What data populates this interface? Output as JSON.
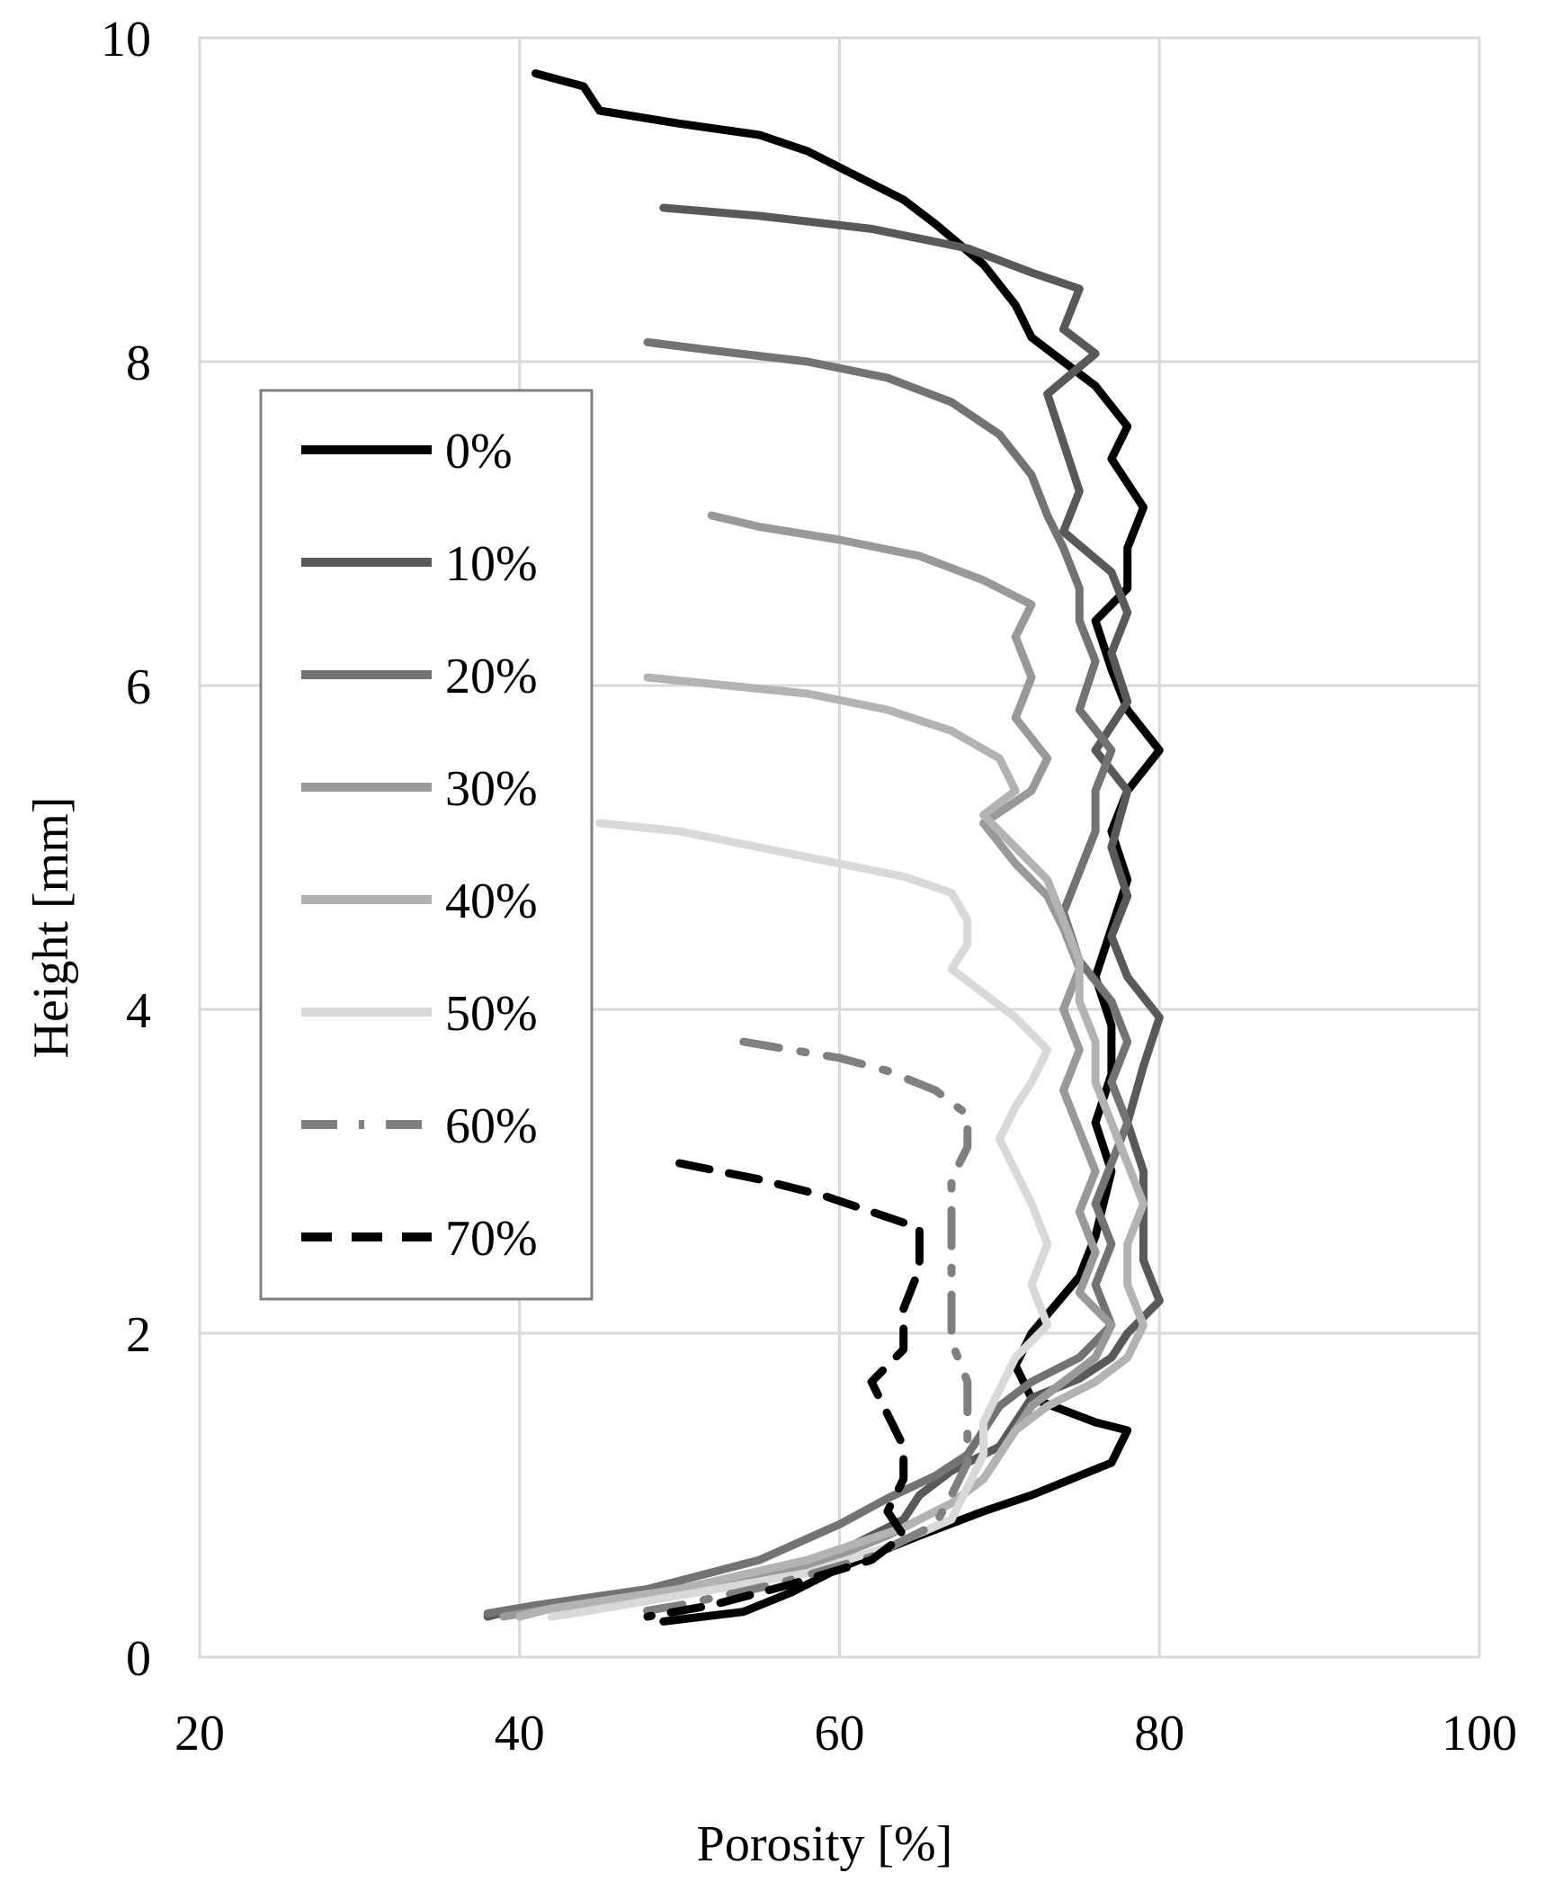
{
  "chart_data": {
    "type": "line",
    "xlabel": "Porosity  [%]",
    "ylabel": "Height  [mm]",
    "xlim": [
      20,
      100
    ],
    "ylim": [
      0,
      10
    ],
    "xticks": [
      "20",
      "40",
      "60",
      "80",
      "100"
    ],
    "yticks": [
      "0",
      "2",
      "4",
      "6",
      "8",
      "10"
    ],
    "grid": true,
    "legend": "upper-left",
    "series": [
      {
        "name": "0%",
        "color": "#000000",
        "dash": "solid",
        "points": [
          [
            41,
            9.78
          ],
          [
            44,
            9.7
          ],
          [
            45,
            9.55
          ],
          [
            50,
            9.47
          ],
          [
            55,
            9.4
          ],
          [
            58,
            9.3
          ],
          [
            61,
            9.15
          ],
          [
            64,
            9.0
          ],
          [
            66,
            8.85
          ],
          [
            69,
            8.6
          ],
          [
            71,
            8.35
          ],
          [
            72,
            8.15
          ],
          [
            74,
            8.0
          ],
          [
            76,
            7.85
          ],
          [
            78,
            7.6
          ],
          [
            77,
            7.4
          ],
          [
            79,
            7.1
          ],
          [
            78,
            6.85
          ],
          [
            78,
            6.6
          ],
          [
            76,
            6.4
          ],
          [
            77,
            6.1
          ],
          [
            78,
            5.85
          ],
          [
            80,
            5.6
          ],
          [
            78,
            5.35
          ],
          [
            77,
            5.1
          ],
          [
            78,
            4.8
          ],
          [
            77,
            4.5
          ],
          [
            76,
            4.2
          ],
          [
            77,
            3.9
          ],
          [
            77,
            3.6
          ],
          [
            76,
            3.3
          ],
          [
            77,
            3.0
          ],
          [
            76,
            2.6
          ],
          [
            75,
            2.35
          ],
          [
            72,
            2.0
          ],
          [
            71,
            1.8
          ],
          [
            72,
            1.6
          ],
          [
            76,
            1.45
          ],
          [
            78,
            1.4
          ],
          [
            77,
            1.2
          ],
          [
            72,
            1.0
          ],
          [
            69,
            0.9
          ],
          [
            65,
            0.75
          ],
          [
            60,
            0.55
          ],
          [
            57,
            0.4
          ],
          [
            54,
            0.28
          ],
          [
            49,
            0.22
          ]
        ]
      },
      {
        "name": "10%",
        "color": "#595959",
        "dash": "solid",
        "points": [
          [
            49,
            8.95
          ],
          [
            55,
            8.9
          ],
          [
            62,
            8.82
          ],
          [
            68,
            8.7
          ],
          [
            72,
            8.55
          ],
          [
            75,
            8.45
          ],
          [
            74,
            8.2
          ],
          [
            76,
            8.05
          ],
          [
            73,
            7.8
          ],
          [
            74,
            7.5
          ],
          [
            75,
            7.2
          ],
          [
            74,
            6.95
          ],
          [
            77,
            6.7
          ],
          [
            78,
            6.45
          ],
          [
            77,
            6.2
          ],
          [
            78,
            5.9
          ],
          [
            76,
            5.6
          ],
          [
            78,
            5.35
          ],
          [
            77,
            5.0
          ],
          [
            78,
            4.7
          ],
          [
            77,
            4.45
          ],
          [
            78,
            4.2
          ],
          [
            80,
            3.95
          ],
          [
            79,
            3.65
          ],
          [
            78,
            3.3
          ],
          [
            79,
            3.0
          ],
          [
            79,
            2.7
          ],
          [
            79,
            2.45
          ],
          [
            80,
            2.2
          ],
          [
            78,
            2.0
          ],
          [
            77,
            1.85
          ],
          [
            75,
            1.72
          ],
          [
            72,
            1.6
          ],
          [
            71,
            1.45
          ],
          [
            70,
            1.3
          ],
          [
            67,
            1.15
          ],
          [
            65,
            1.0
          ],
          [
            64,
            0.85
          ],
          [
            60,
            0.65
          ],
          [
            55,
            0.48
          ],
          [
            48,
            0.38
          ],
          [
            40,
            0.3
          ],
          [
            38,
            0.25
          ]
        ]
      },
      {
        "name": "20%",
        "color": "#737373",
        "dash": "solid",
        "points": [
          [
            48,
            8.12
          ],
          [
            52,
            8.07
          ],
          [
            58,
            8.0
          ],
          [
            63,
            7.9
          ],
          [
            67,
            7.75
          ],
          [
            70,
            7.55
          ],
          [
            72,
            7.3
          ],
          [
            73,
            7.05
          ],
          [
            74,
            6.85
          ],
          [
            75,
            6.6
          ],
          [
            75,
            6.4
          ],
          [
            76,
            6.15
          ],
          [
            75,
            5.85
          ],
          [
            77,
            5.6
          ],
          [
            76,
            5.35
          ],
          [
            76,
            5.1
          ],
          [
            75,
            4.85
          ],
          [
            74,
            4.6
          ],
          [
            75,
            4.3
          ],
          [
            77,
            4.05
          ],
          [
            78,
            3.8
          ],
          [
            77,
            3.55
          ],
          [
            78,
            3.3
          ],
          [
            77,
            3.05
          ],
          [
            76,
            2.8
          ],
          [
            77,
            2.55
          ],
          [
            76,
            2.3
          ],
          [
            77,
            2.05
          ],
          [
            75,
            1.85
          ],
          [
            72,
            1.7
          ],
          [
            70,
            1.55
          ],
          [
            69,
            1.4
          ],
          [
            68,
            1.25
          ],
          [
            66,
            1.12
          ],
          [
            63,
            0.98
          ],
          [
            60,
            0.82
          ],
          [
            55,
            0.6
          ],
          [
            48,
            0.42
          ],
          [
            41,
            0.32
          ],
          [
            38,
            0.27
          ]
        ]
      },
      {
        "name": "30%",
        "color": "#999999",
        "dash": "solid",
        "points": [
          [
            52,
            7.05
          ],
          [
            55,
            6.98
          ],
          [
            60,
            6.9
          ],
          [
            65,
            6.8
          ],
          [
            69,
            6.65
          ],
          [
            72,
            6.5
          ],
          [
            71,
            6.3
          ],
          [
            72,
            6.05
          ],
          [
            71,
            5.8
          ],
          [
            73,
            5.55
          ],
          [
            72,
            5.35
          ],
          [
            69,
            5.15
          ],
          [
            71,
            4.9
          ],
          [
            73,
            4.7
          ],
          [
            74,
            4.5
          ],
          [
            75,
            4.25
          ],
          [
            74,
            4.0
          ],
          [
            75,
            3.75
          ],
          [
            74,
            3.5
          ],
          [
            75,
            3.25
          ],
          [
            76,
            3.0
          ],
          [
            75,
            2.75
          ],
          [
            76,
            2.5
          ],
          [
            75,
            2.25
          ],
          [
            77,
            2.05
          ],
          [
            76,
            1.85
          ],
          [
            74,
            1.7
          ],
          [
            72,
            1.55
          ],
          [
            71,
            1.4
          ],
          [
            70,
            1.25
          ],
          [
            69,
            1.1
          ],
          [
            67,
            0.95
          ],
          [
            63,
            0.75
          ],
          [
            58,
            0.55
          ],
          [
            50,
            0.4
          ],
          [
            42,
            0.3
          ],
          [
            39,
            0.25
          ]
        ]
      },
      {
        "name": "40%",
        "color": "#b3b3b3",
        "dash": "solid",
        "points": [
          [
            48,
            6.05
          ],
          [
            53,
            6.0
          ],
          [
            58,
            5.95
          ],
          [
            63,
            5.85
          ],
          [
            67,
            5.72
          ],
          [
            70,
            5.55
          ],
          [
            71,
            5.35
          ],
          [
            69,
            5.2
          ],
          [
            71,
            5.0
          ],
          [
            73,
            4.8
          ],
          [
            74,
            4.55
          ],
          [
            75,
            4.3
          ],
          [
            75,
            4.05
          ],
          [
            76,
            3.8
          ],
          [
            76,
            3.55
          ],
          [
            77,
            3.3
          ],
          [
            78,
            3.05
          ],
          [
            79,
            2.8
          ],
          [
            78,
            2.55
          ],
          [
            78,
            2.3
          ],
          [
            79,
            2.05
          ],
          [
            78,
            1.85
          ],
          [
            76,
            1.7
          ],
          [
            73,
            1.55
          ],
          [
            71,
            1.4
          ],
          [
            70,
            1.25
          ],
          [
            69,
            1.1
          ],
          [
            67,
            0.95
          ],
          [
            64,
            0.8
          ],
          [
            58,
            0.6
          ],
          [
            50,
            0.42
          ],
          [
            42,
            0.3
          ],
          [
            40,
            0.25
          ]
        ]
      },
      {
        "name": "50%",
        "color": "#d9d9d9",
        "dash": "solid",
        "points": [
          [
            45,
            5.15
          ],
          [
            50,
            5.1
          ],
          [
            55,
            5.0
          ],
          [
            60,
            4.9
          ],
          [
            64,
            4.82
          ],
          [
            67,
            4.72
          ],
          [
            68,
            4.55
          ],
          [
            68,
            4.4
          ],
          [
            67,
            4.25
          ],
          [
            69,
            4.1
          ],
          [
            71,
            3.95
          ],
          [
            73,
            3.75
          ],
          [
            72,
            3.55
          ],
          [
            71,
            3.4
          ],
          [
            70,
            3.2
          ],
          [
            71,
            3.0
          ],
          [
            72,
            2.8
          ],
          [
            73,
            2.55
          ],
          [
            72,
            2.3
          ],
          [
            73,
            2.05
          ],
          [
            71,
            1.85
          ],
          [
            70,
            1.65
          ],
          [
            69,
            1.45
          ],
          [
            69,
            1.25
          ],
          [
            68,
            1.05
          ],
          [
            67,
            0.85
          ],
          [
            63,
            0.68
          ],
          [
            58,
            0.52
          ],
          [
            50,
            0.38
          ],
          [
            44,
            0.28
          ],
          [
            42,
            0.25
          ]
        ]
      },
      {
        "name": "60%",
        "color": "#808080",
        "dash": "dashdot",
        "points": [
          [
            54,
            3.8
          ],
          [
            57,
            3.75
          ],
          [
            60,
            3.7
          ],
          [
            63,
            3.62
          ],
          [
            66,
            3.5
          ],
          [
            68,
            3.35
          ],
          [
            68,
            3.15
          ],
          [
            67,
            2.95
          ],
          [
            67,
            2.7
          ],
          [
            67,
            2.45
          ],
          [
            67,
            2.2
          ],
          [
            67,
            1.95
          ],
          [
            68,
            1.7
          ],
          [
            68,
            1.45
          ],
          [
            68,
            1.2
          ],
          [
            67,
            1.0
          ],
          [
            66,
            0.82
          ],
          [
            62,
            0.62
          ],
          [
            56,
            0.45
          ],
          [
            50,
            0.32
          ],
          [
            47,
            0.27
          ]
        ]
      },
      {
        "name": "70%",
        "color": "#000000",
        "dash": "dashed",
        "points": [
          [
            50,
            3.05
          ],
          [
            55,
            2.95
          ],
          [
            59,
            2.85
          ],
          [
            62,
            2.75
          ],
          [
            65,
            2.65
          ],
          [
            65,
            2.4
          ],
          [
            64,
            2.15
          ],
          [
            64,
            1.9
          ],
          [
            62,
            1.7
          ],
          [
            63,
            1.5
          ],
          [
            64,
            1.3
          ],
          [
            64,
            1.1
          ],
          [
            63,
            0.9
          ],
          [
            64,
            0.75
          ],
          [
            62,
            0.6
          ],
          [
            57,
            0.45
          ],
          [
            52,
            0.32
          ],
          [
            48,
            0.25
          ]
        ]
      }
    ]
  }
}
